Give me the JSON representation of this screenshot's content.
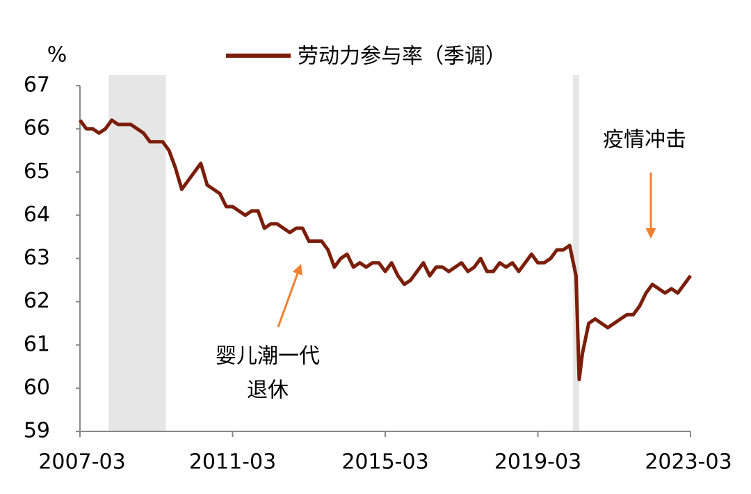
{
  "chart_data": {
    "type": "line",
    "legend": "劳动力参与率（季调）",
    "y_unit": "%",
    "annotations": [
      "婴儿潮一代",
      "退休",
      "疫情冲击"
    ],
    "x": [
      "2007-03",
      "2007-05",
      "2007-07",
      "2007-09",
      "2007-11",
      "2008-01",
      "2008-03",
      "2008-05",
      "2008-07",
      "2008-09",
      "2008-11",
      "2009-01",
      "2009-03",
      "2009-05",
      "2009-07",
      "2009-09",
      "2009-11",
      "2010-01",
      "2010-03",
      "2010-05",
      "2010-07",
      "2010-09",
      "2010-11",
      "2011-01",
      "2011-03",
      "2011-05",
      "2011-07",
      "2011-09",
      "2011-11",
      "2012-01",
      "2012-03",
      "2012-05",
      "2012-07",
      "2012-09",
      "2012-11",
      "2013-01",
      "2013-03",
      "2013-05",
      "2013-07",
      "2013-09",
      "2013-11",
      "2014-01",
      "2014-03",
      "2014-05",
      "2014-07",
      "2014-09",
      "2014-11",
      "2015-01",
      "2015-03",
      "2015-05",
      "2015-07",
      "2015-09",
      "2015-11",
      "2016-01",
      "2016-03",
      "2016-05",
      "2016-07",
      "2016-09",
      "2016-11",
      "2017-01",
      "2017-03",
      "2017-05",
      "2017-07",
      "2017-09",
      "2017-11",
      "2018-01",
      "2018-03",
      "2018-05",
      "2018-07",
      "2018-09",
      "2018-11",
      "2019-01",
      "2019-03",
      "2019-05",
      "2019-07",
      "2019-09",
      "2019-11",
      "2020-01",
      "2020-03",
      "2020-04",
      "2020-05",
      "2020-07",
      "2020-09",
      "2020-11",
      "2021-01",
      "2021-03",
      "2021-05",
      "2021-07",
      "2021-09",
      "2021-11",
      "2022-01",
      "2022-03",
      "2022-05",
      "2022-07",
      "2022-09",
      "2022-11",
      "2023-01",
      "2023-03"
    ],
    "series": [
      {
        "name": "劳动力参与率（季调）",
        "color": "#7a1e0a",
        "values": [
          66.2,
          66.0,
          66.0,
          65.9,
          66.0,
          66.2,
          66.1,
          66.1,
          66.1,
          66.0,
          65.9,
          65.7,
          65.7,
          65.7,
          65.5,
          65.1,
          64.6,
          64.8,
          65.0,
          65.2,
          64.7,
          64.6,
          64.5,
          64.2,
          64.2,
          64.1,
          64.0,
          64.1,
          64.1,
          63.7,
          63.8,
          63.8,
          63.7,
          63.6,
          63.7,
          63.7,
          63.4,
          63.4,
          63.4,
          63.2,
          62.8,
          63.0,
          63.1,
          62.8,
          62.9,
          62.8,
          62.9,
          62.9,
          62.7,
          62.9,
          62.6,
          62.4,
          62.5,
          62.7,
          62.9,
          62.6,
          62.8,
          62.8,
          62.7,
          62.8,
          62.9,
          62.7,
          62.8,
          63.0,
          62.7,
          62.7,
          62.9,
          62.8,
          62.9,
          62.7,
          62.9,
          63.1,
          62.9,
          62.9,
          63.0,
          63.2,
          63.2,
          63.3,
          62.6,
          60.2,
          60.8,
          61.5,
          61.6,
          61.5,
          61.4,
          61.5,
          61.6,
          61.7,
          61.7,
          61.9,
          62.2,
          62.4,
          62.3,
          62.2,
          62.3,
          62.2,
          62.4,
          62.6
        ]
      }
    ],
    "shaded": [
      [
        "2007-12",
        "2009-06"
      ],
      [
        "2020-02",
        "2020-04"
      ]
    ],
    "xlim": [
      "2007-03",
      "2023-03"
    ],
    "xticks": [
      "2007-03",
      "2011-03",
      "2015-03",
      "2019-03",
      "2023-03"
    ],
    "ylim": [
      59,
      67
    ],
    "yticks": [
      59,
      60,
      61,
      62,
      63,
      64,
      65,
      66,
      67
    ]
  }
}
